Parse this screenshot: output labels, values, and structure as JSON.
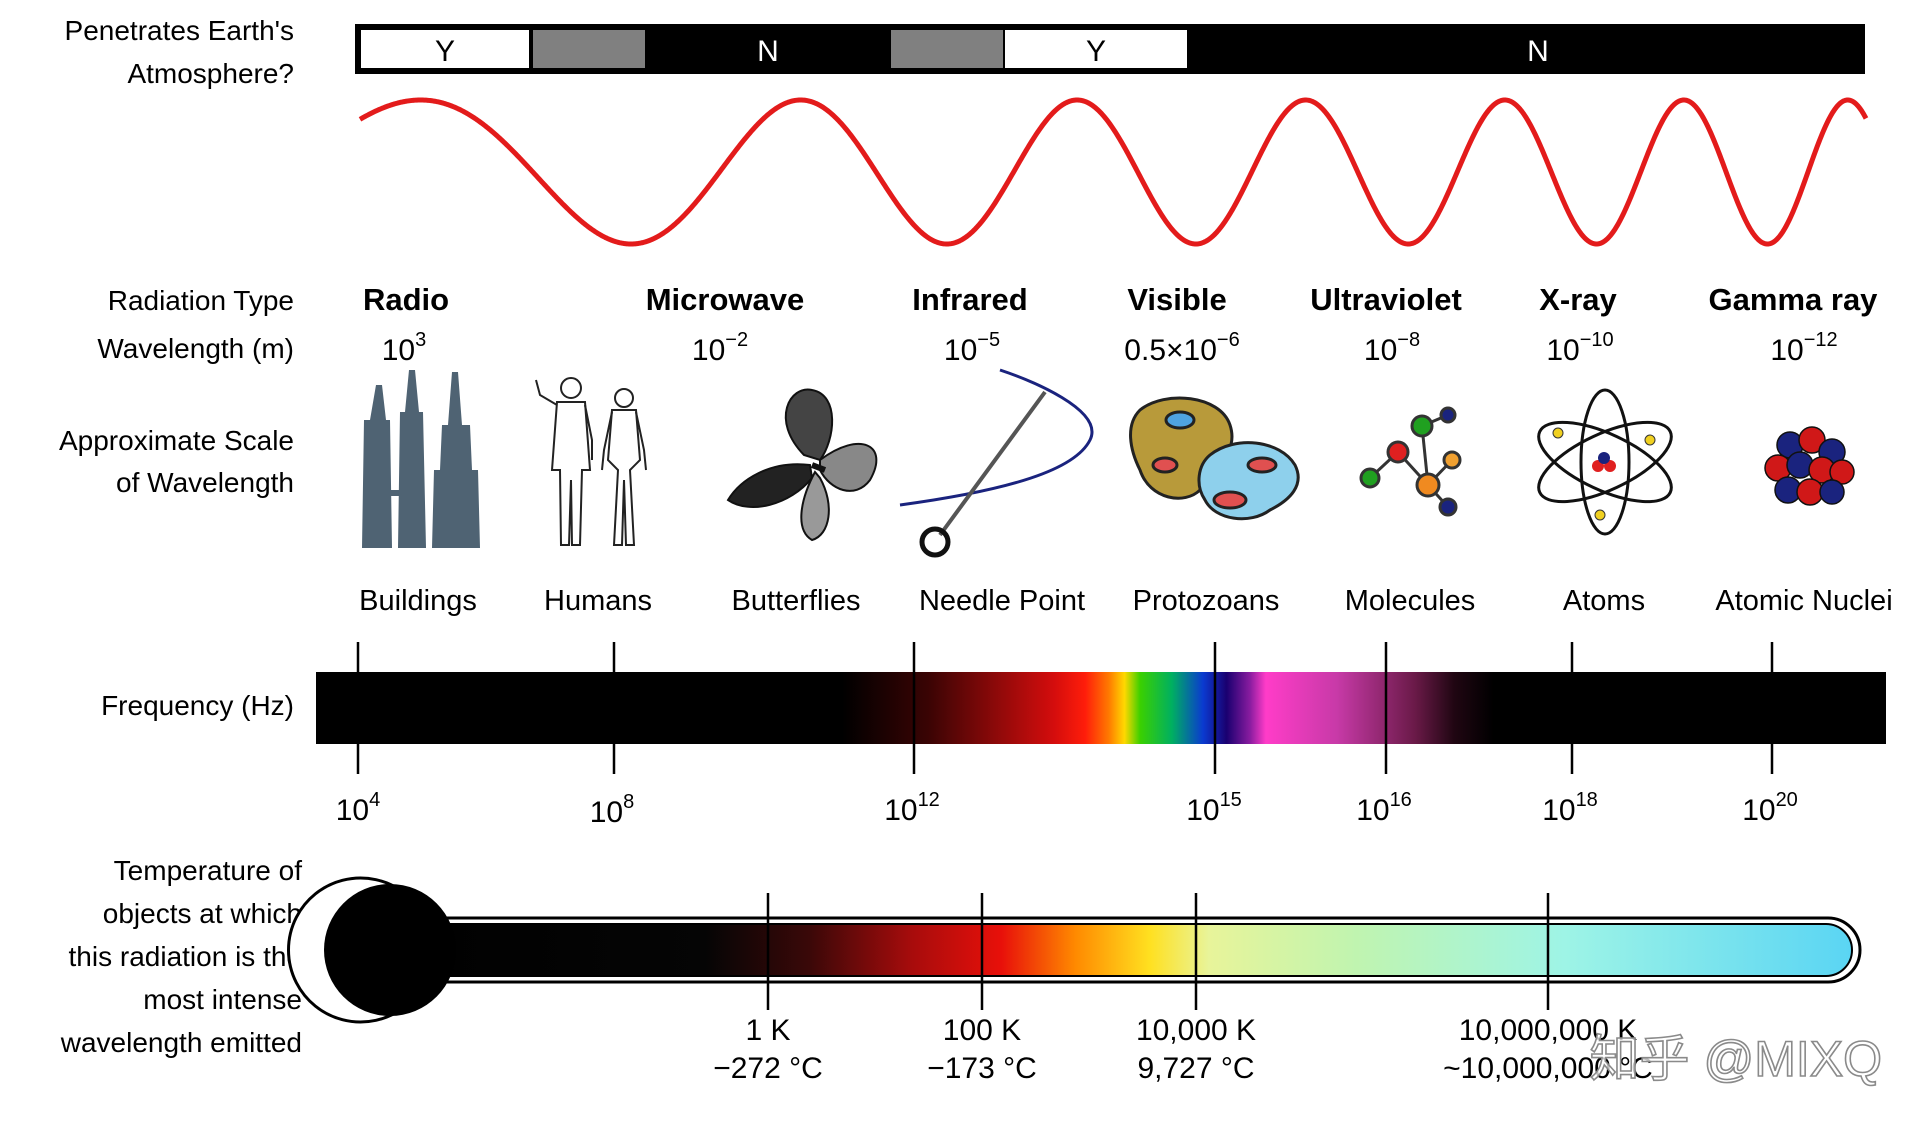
{
  "labels": {
    "penetrates": [
      "Penetrates Earth's",
      "Atmosphere?"
    ],
    "radiation_type": "Radiation Type",
    "wavelength": "Wavelength (m)",
    "scale": [
      "Approximate Scale",
      "of Wavelength"
    ],
    "frequency": "Frequency (Hz)",
    "temperature": [
      "Temperature of",
      "objects at which",
      "this radiation is the",
      "most intense",
      "wavelength emitted"
    ]
  },
  "atmosphere": {
    "segments": [
      {
        "label": "Y",
        "value": "yes"
      },
      {
        "label": "",
        "value": "partial"
      },
      {
        "label": "N",
        "value": "no"
      },
      {
        "label": "",
        "value": "partial"
      },
      {
        "label": "Y",
        "value": "yes"
      },
      {
        "label": "N",
        "value": "no"
      }
    ],
    "colors": {
      "yes": "#ffffff",
      "partial": "#808080",
      "no": "#000000"
    }
  },
  "wave": {
    "color": "#e31b1b"
  },
  "types": [
    {
      "name": "Radio",
      "base": "10",
      "exp": "3"
    },
    {
      "name": "Microwave",
      "base": "10",
      "exp": "−2"
    },
    {
      "name": "Infrared",
      "base": "10",
      "exp": "−5"
    },
    {
      "name": "Visible",
      "base": "0.5×10",
      "exp": "−6"
    },
    {
      "name": "Ultraviolet",
      "base": "10",
      "exp": "−8"
    },
    {
      "name": "X-ray",
      "base": "10",
      "exp": "−10"
    },
    {
      "name": "Gamma ray",
      "base": "10",
      "exp": "−12"
    }
  ],
  "scale_items": [
    {
      "label": "Buildings",
      "icon": "buildings-icon"
    },
    {
      "label": "Humans",
      "icon": "humans-icon"
    },
    {
      "label": "Butterflies",
      "icon": "butterfly-icon"
    },
    {
      "label": "Needle Point",
      "icon": "needle-icon"
    },
    {
      "label": "Protozoans",
      "icon": "protozoa-icon"
    },
    {
      "label": "Molecules",
      "icon": "molecule-icon"
    },
    {
      "label": "Atoms",
      "icon": "atom-icon"
    },
    {
      "label": "Atomic Nuclei",
      "icon": "nucleus-icon"
    }
  ],
  "frequency_ticks": [
    {
      "base": "10",
      "exp": "4"
    },
    {
      "base": "10",
      "exp": "8"
    },
    {
      "base": "10",
      "exp": "12"
    },
    {
      "base": "10",
      "exp": "15"
    },
    {
      "base": "10",
      "exp": "16"
    },
    {
      "base": "10",
      "exp": "18"
    },
    {
      "base": "10",
      "exp": "20"
    }
  ],
  "temperature_ticks": [
    {
      "kelvin": "1 K",
      "celsius": "−272 °C"
    },
    {
      "kelvin": "100 K",
      "celsius": "−173 °C"
    },
    {
      "kelvin": "10,000 K",
      "celsius": "9,727 °C"
    },
    {
      "kelvin": "10,000,000 K",
      "celsius": "~10,000,000 °C"
    }
  ],
  "watermark": "知乎 @MIXQ"
}
